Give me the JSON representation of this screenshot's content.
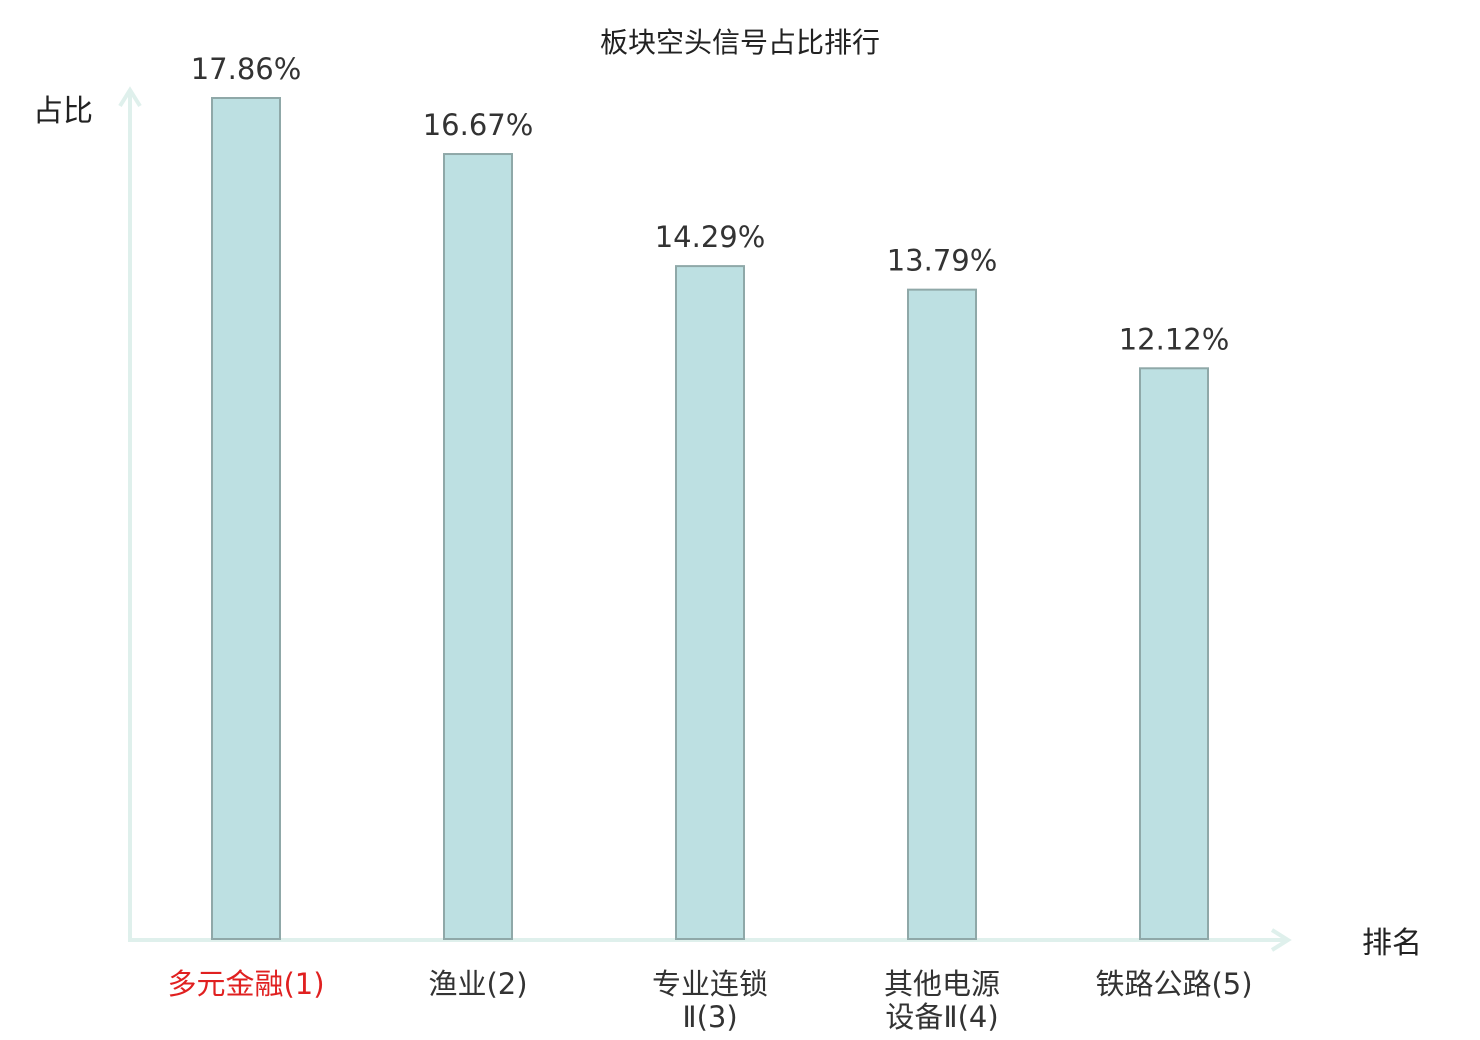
{
  "chart_data": {
    "type": "bar",
    "title": "板块空头信号占比排行",
    "ylabel": "占比",
    "xlabel": "排名",
    "unit": "%",
    "ylim": [
      0,
      17.86
    ],
    "categories": [
      {
        "name": "多元金融",
        "rank": "(1)",
        "lines": [
          "多元金融(1)"
        ],
        "highlight": true
      },
      {
        "name": "渔业",
        "rank": "(2)",
        "lines": [
          "渔业(2)"
        ],
        "highlight": false
      },
      {
        "name": "专业连锁Ⅱ",
        "rank": "(3)",
        "lines": [
          "专业连锁",
          "Ⅱ(3)"
        ],
        "highlight": false
      },
      {
        "name": "其他电源设备Ⅱ",
        "rank": "(4)",
        "lines": [
          "其他电源",
          "设备Ⅱ(4)"
        ],
        "highlight": false
      },
      {
        "name": "铁路公路",
        "rank": "(5)",
        "lines": [
          "铁路公路(5)"
        ],
        "highlight": false
      }
    ],
    "values": [
      17.86,
      16.67,
      14.29,
      13.79,
      12.12
    ],
    "value_labels": [
      "17.86%",
      "16.67%",
      "14.29%",
      "13.79%",
      "12.12%"
    ],
    "grid": false,
    "colors": {
      "bar_fill": "#bde0e2",
      "bar_stroke": "#8fa8a8",
      "axis": "#dff0ec",
      "text": "#333333",
      "highlight_text": "#e02020"
    }
  }
}
